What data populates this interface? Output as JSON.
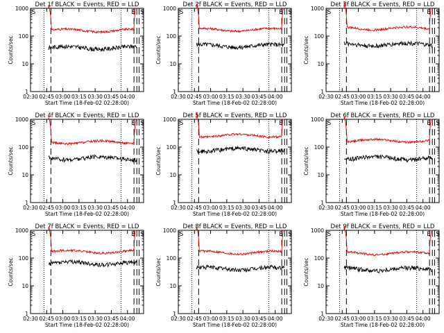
{
  "colors": {
    "events": "#000000",
    "lld": "#e00000",
    "axes": "#000000",
    "background": "#ffffff"
  },
  "chart_data": [
    {
      "type": "line",
      "title": "Det 1f BLACK = Events, RED = LLD",
      "xlabel": "Start Time (18-Feb-02 02:28:00)",
      "ylabel": "Counts/sec",
      "yscale": "log",
      "ylim": [
        1,
        1000
      ],
      "xticklabels": [
        "02:30",
        "02:45",
        "03:00",
        "03:15",
        "03:30",
        "03:45",
        "04:00"
      ],
      "yticklabels": [
        "1",
        "10",
        "100",
        "1000"
      ],
      "markers": [
        {
          "label": "S"
        },
        {
          "label": "E"
        },
        {
          "label": "S"
        }
      ],
      "series": [
        {
          "name": "LLD",
          "level": 160
        },
        {
          "name": "Events",
          "level": 38
        }
      ]
    },
    {
      "type": "line",
      "title": "Det 2f BLACK = Events, RED = LLD",
      "xlabel": "Start Time (18-Feb-02 02:28:00)",
      "ylabel": "Counts/sec",
      "yscale": "log",
      "ylim": [
        1,
        1000
      ],
      "xticklabels": [
        "02:30",
        "02:45",
        "03:00",
        "03:15",
        "03:30",
        "03:45",
        "04:00"
      ],
      "yticklabels": [
        "1",
        "10",
        "100",
        "1000"
      ],
      "markers": [
        {
          "label": "S"
        },
        {
          "label": "E"
        },
        {
          "label": "S"
        }
      ],
      "series": [
        {
          "name": "LLD",
          "level": 170
        },
        {
          "name": "Events",
          "level": 45
        }
      ]
    },
    {
      "type": "line",
      "title": "Det 3f BLACK = Events, RED = LLD",
      "xlabel": "Start Time (18-Feb-02 02:28:00)",
      "ylabel": "Counts/sec",
      "yscale": "log",
      "ylim": [
        1,
        1000
      ],
      "xticklabels": [
        "02:30",
        "02:45",
        "03:00",
        "03:15",
        "03:30",
        "03:45",
        "04:00"
      ],
      "yticklabels": [
        "1",
        "10",
        "100",
        "1000"
      ],
      "markers": [
        {
          "label": "S"
        },
        {
          "label": "E"
        },
        {
          "label": "S"
        }
      ],
      "series": [
        {
          "name": "LLD",
          "level": 190
        },
        {
          "name": "Events",
          "level": 50
        }
      ]
    },
    {
      "type": "line",
      "title": "Det 4f BLACK = Events, RED = LLD",
      "xlabel": "Start Time (18-Feb-02 02:28:00)",
      "ylabel": "Counts/sec",
      "yscale": "log",
      "ylim": [
        1,
        1000
      ],
      "xticklabels": [
        "02:30",
        "02:45",
        "03:00",
        "03:15",
        "03:30",
        "03:45",
        "04:00"
      ],
      "yticklabels": [
        "1",
        "10",
        "100",
        "1000"
      ],
      "markers": [
        {
          "label": "S"
        },
        {
          "label": "E"
        },
        {
          "label": "S"
        }
      ],
      "series": [
        {
          "name": "LLD",
          "level": 150
        },
        {
          "name": "Events",
          "level": 40
        }
      ]
    },
    {
      "type": "line",
      "title": "Det 5f BLACK = Events, RED = LLD",
      "xlabel": "Start Time (18-Feb-02 02:28:00)",
      "ylabel": "Counts/sec",
      "yscale": "log",
      "ylim": [
        1,
        1000
      ],
      "xticklabels": [
        "02:30",
        "02:45",
        "03:00",
        "03:15",
        "03:30",
        "03:45",
        "04:00"
      ],
      "yticklabels": [
        "1",
        "10",
        "100",
        "1000"
      ],
      "markers": [
        {
          "label": "S"
        },
        {
          "label": "E"
        },
        {
          "label": "S"
        }
      ],
      "series": [
        {
          "name": "LLD",
          "level": 260
        },
        {
          "name": "Events",
          "level": 80
        }
      ]
    },
    {
      "type": "line",
      "title": "Det 6f BLACK = Events, RED = LLD",
      "xlabel": "Start Time (18-Feb-02 02:28:00)",
      "ylabel": "Counts/sec",
      "yscale": "log",
      "ylim": [
        1,
        1000
      ],
      "xticklabels": [
        "02:30",
        "02:45",
        "03:00",
        "03:15",
        "03:30",
        "03:45",
        "04:00"
      ],
      "yticklabels": [
        "1",
        "10",
        "100",
        "1000"
      ],
      "markers": [
        {
          "label": "S"
        },
        {
          "label": "E"
        },
        {
          "label": "S"
        }
      ],
      "series": [
        {
          "name": "LLD",
          "level": 170
        },
        {
          "name": "Events",
          "level": 40
        }
      ]
    },
    {
      "type": "line",
      "title": "Det 7f BLACK = Events, RED = LLD",
      "xlabel": "Start Time (18-Feb-02 02:28:00)",
      "ylabel": "Counts/sec",
      "yscale": "log",
      "ylim": [
        1,
        1000
      ],
      "xticklabels": [
        "02:30",
        "02:45",
        "03:00",
        "03:15",
        "03:30",
        "03:45",
        "04:00"
      ],
      "yticklabels": [
        "1",
        "10",
        "100",
        "1000"
      ],
      "markers": [
        {
          "label": "S"
        },
        {
          "label": "E"
        },
        {
          "label": "S"
        }
      ],
      "series": [
        {
          "name": "LLD",
          "level": 170
        },
        {
          "name": "Events",
          "level": 65
        }
      ]
    },
    {
      "type": "line",
      "title": "Det 8f BLACK = Events, RED = LLD",
      "xlabel": "Start Time (18-Feb-02 02:28:00)",
      "ylabel": "Counts/sec",
      "yscale": "log",
      "ylim": [
        1,
        1000
      ],
      "xticklabels": [
        "02:30",
        "02:45",
        "03:00",
        "03:15",
        "03:30",
        "03:45",
        "04:00"
      ],
      "yticklabels": [
        "1",
        "10",
        "100",
        "1000"
      ],
      "markers": [
        {
          "label": "S"
        },
        {
          "label": "E"
        },
        {
          "label": "S"
        }
      ],
      "series": [
        {
          "name": "LLD",
          "level": 160
        },
        {
          "name": "Events",
          "level": 42
        }
      ]
    },
    {
      "type": "line",
      "title": "Det 9f BLACK = Events, RED = LLD",
      "xlabel": "Start Time (18-Feb-02 02:28:00)",
      "ylabel": "Counts/sec",
      "yscale": "log",
      "ylim": [
        1,
        1000
      ],
      "xticklabels": [
        "02:30",
        "02:45",
        "03:00",
        "03:15",
        "03:30",
        "03:45",
        "04:00"
      ],
      "yticklabels": [
        "1",
        "10",
        "100",
        "1000"
      ],
      "markers": [
        {
          "label": "S"
        },
        {
          "label": "E"
        },
        {
          "label": "S"
        }
      ],
      "series": [
        {
          "name": "LLD",
          "level": 150
        },
        {
          "name": "Events",
          "level": 40
        }
      ]
    }
  ]
}
